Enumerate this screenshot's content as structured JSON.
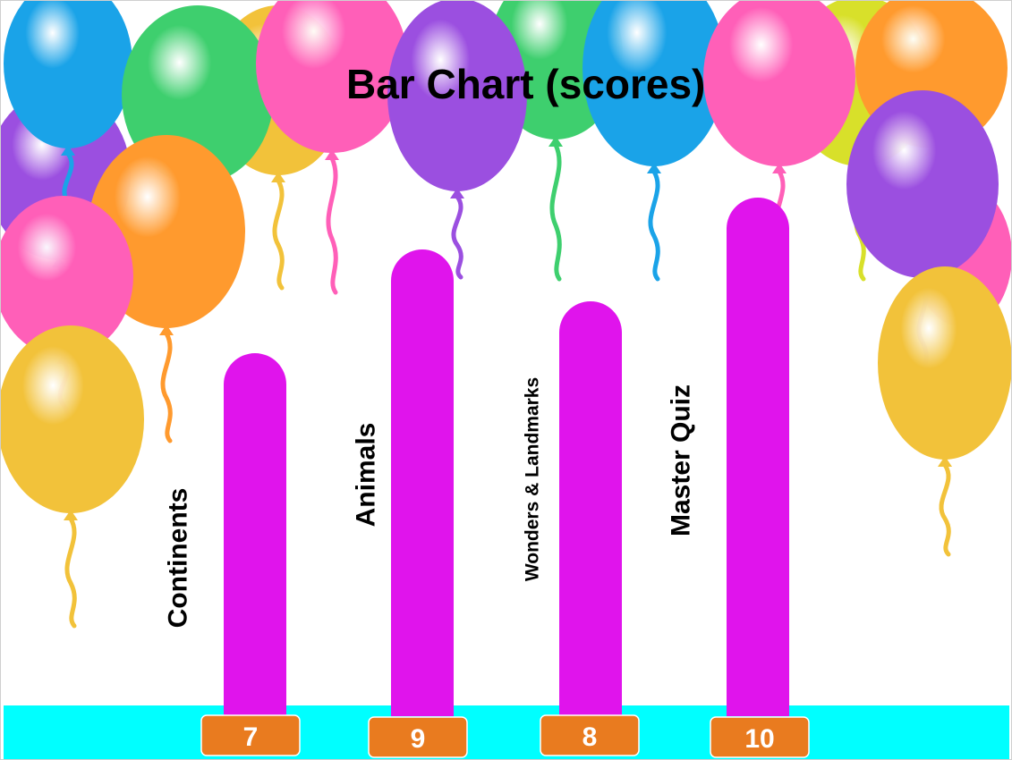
{
  "chart_data": {
    "type": "bar",
    "title": "Bar Chart (scores)",
    "categories": [
      "Continents",
      "Animals",
      "Wonders & Landmarks",
      "Master Quiz"
    ],
    "values": [
      7,
      9,
      8,
      10
    ],
    "xlabel": "",
    "ylabel": "",
    "ylim": [
      0,
      10
    ],
    "grid": false,
    "legend": "none"
  },
  "colors": {
    "bar": "#e014ec",
    "value_badge": "#e97b1f",
    "value_badge_text": "#ffffff",
    "floor": "#00ffff",
    "title": "#000000",
    "label": "#000000"
  },
  "decoration": {
    "theme": "party-balloons",
    "icons": [
      "balloon-icon",
      "ribbon-icon"
    ],
    "balloon_colors": [
      "#1aa3e8",
      "#3ecf6e",
      "#f2c23a",
      "#ff5fb8",
      "#9b4fe0",
      "#ff9a2e",
      "#f05a2a",
      "#d8e02a"
    ]
  }
}
